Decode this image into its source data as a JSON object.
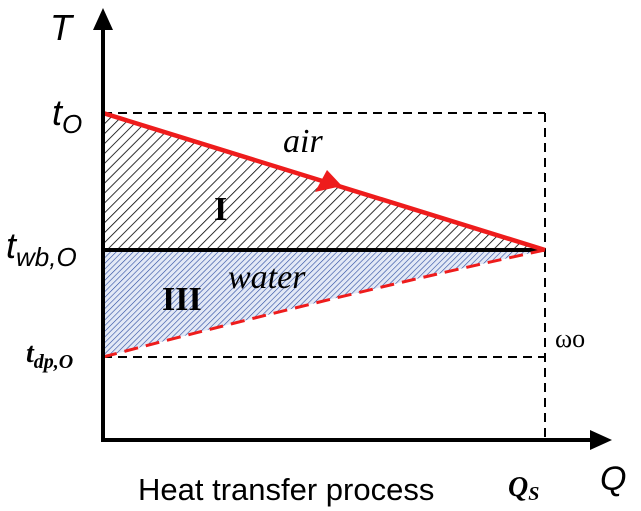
{
  "axes": {
    "y_label": "T",
    "x_label": "Q"
  },
  "labels": {
    "t_o": {
      "main": "t",
      "sub": "O"
    },
    "t_wb_o": {
      "main": "t",
      "sub": "wb,O"
    },
    "t_dp_o": {
      "main": "t",
      "sub": "dp,O"
    },
    "omega_o": "ωo",
    "q_s": {
      "main": "Q",
      "sub": "S"
    },
    "air": "air",
    "water": "water",
    "region_1": "I",
    "region_3": "III",
    "caption": "Heat transfer process"
  },
  "colors": {
    "air_line": "#ee1c1c",
    "water_line": "#ee1c1c",
    "axis": "#000000",
    "region_1_hatch": "#000000",
    "region_3_hatch": "#1f3a8a",
    "region_3_fill": "#dfe6f5"
  }
}
